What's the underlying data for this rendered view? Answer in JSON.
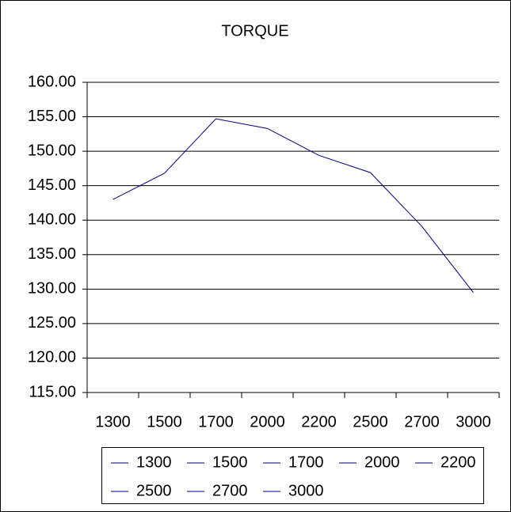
{
  "chart_data": {
    "type": "line",
    "title": "TORQUE",
    "categories": [
      "1300",
      "1500",
      "1700",
      "2000",
      "2200",
      "2500",
      "2700",
      "3000"
    ],
    "values": [
      143.0,
      146.8,
      154.7,
      153.3,
      149.4,
      146.9,
      139.1,
      129.5
    ],
    "color": "#000080",
    "ylim": [
      115,
      160
    ],
    "yticks": [
      {
        "value": 115,
        "label": "115.00"
      },
      {
        "value": 120,
        "label": "120.00"
      },
      {
        "value": 125,
        "label": "125.00"
      },
      {
        "value": 130,
        "label": "130.00"
      },
      {
        "value": 135,
        "label": "135.00"
      },
      {
        "value": 140,
        "label": "140.00"
      },
      {
        "value": 145,
        "label": "145.00"
      },
      {
        "value": 150,
        "label": "150.00"
      },
      {
        "value": 155,
        "label": "155.00"
      },
      {
        "value": 160,
        "label": "160.00"
      }
    ],
    "grid": true
  }
}
